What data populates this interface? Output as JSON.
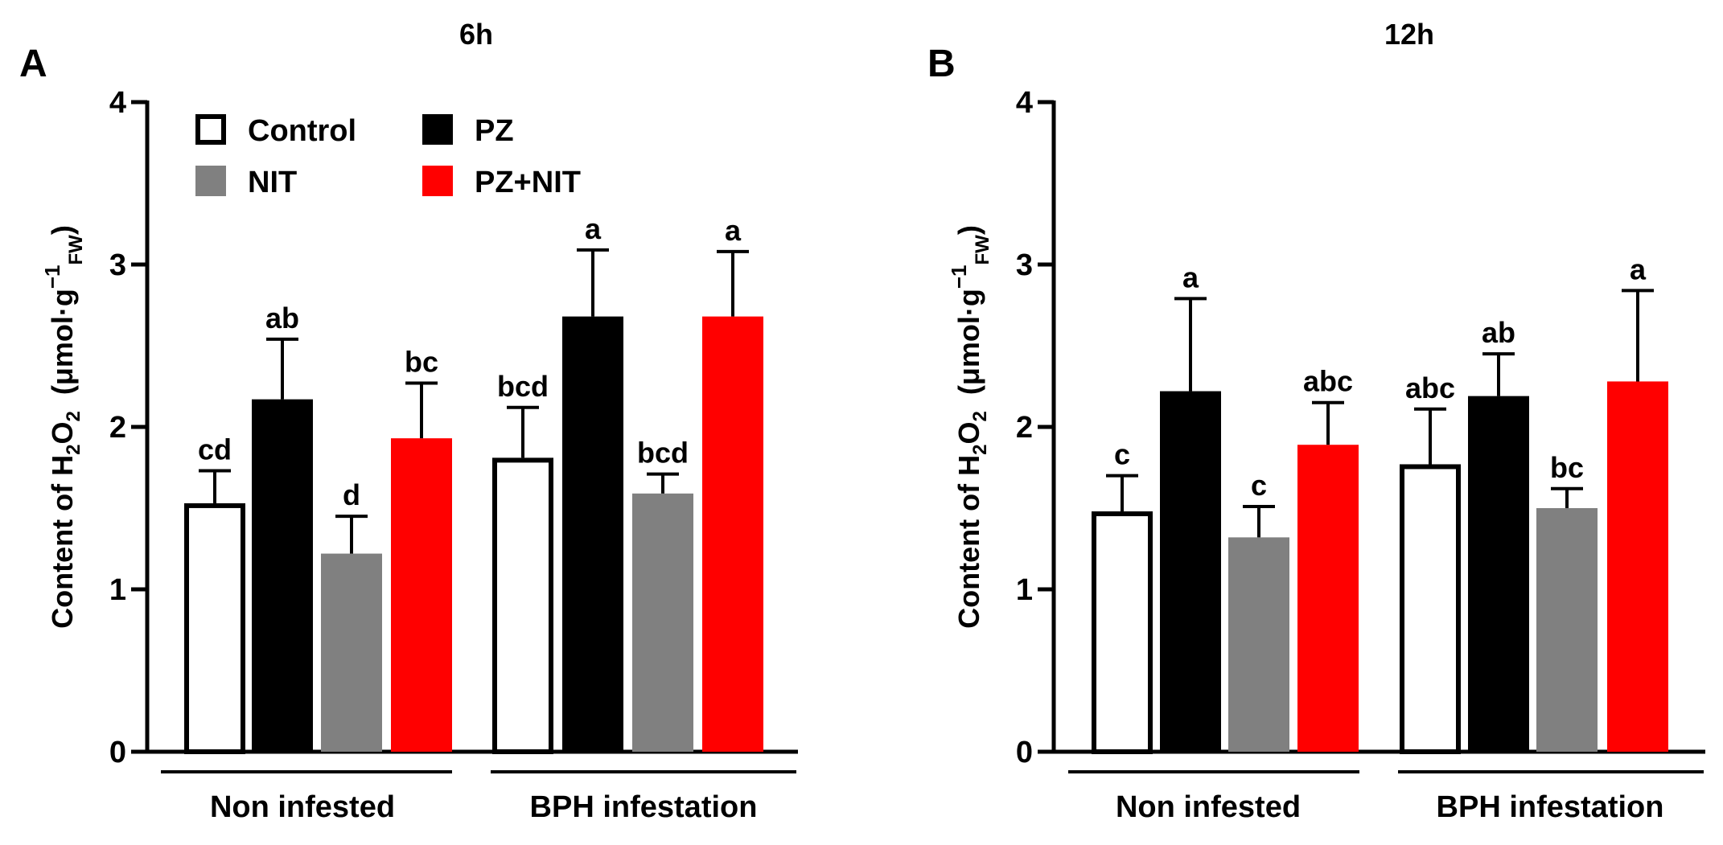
{
  "figure": {
    "legend": [
      {
        "label": "Control",
        "fill": "#ffffff",
        "stroke": "#000000"
      },
      {
        "label": "PZ",
        "fill": "#000000",
        "stroke": "#000000"
      },
      {
        "label": "NIT",
        "fill": "#808080",
        "stroke": "#808080"
      },
      {
        "label": "PZ+NIT",
        "fill": "#ff0000",
        "stroke": "#ff0000"
      }
    ],
    "ylabel_parts": {
      "pre": "Content of H",
      "sub1": "2",
      "mid": "O",
      "sub2": "2",
      "unit": "(μmol·g",
      "sup": "−1",
      "fw": "FW",
      "close": ")"
    }
  },
  "chart_data": [
    {
      "type": "bar",
      "panel_letter": "A",
      "title": "6h",
      "groups": [
        "Non infested",
        "BPH infestation"
      ],
      "series_order": [
        "Control",
        "PZ",
        "NIT",
        "PZ+NIT"
      ],
      "ylim": [
        0,
        4
      ],
      "yticks": [
        "0",
        "1",
        "2",
        "3",
        "4"
      ],
      "values": [
        [
          1.53,
          2.17,
          1.22,
          1.93
        ],
        [
          1.81,
          2.68,
          1.59,
          2.68
        ]
      ],
      "errors": [
        [
          0.2,
          0.37,
          0.23,
          0.34
        ],
        [
          0.31,
          0.41,
          0.12,
          0.4
        ]
      ],
      "letters": [
        [
          "cd",
          "ab",
          "d",
          "bc"
        ],
        [
          "bcd",
          "a",
          "bcd",
          "a"
        ]
      ]
    },
    {
      "type": "bar",
      "panel_letter": "B",
      "title": "12h",
      "groups": [
        "Non infested",
        "BPH infestation"
      ],
      "series_order": [
        "Control",
        "PZ",
        "NIT",
        "PZ+NIT"
      ],
      "ylim": [
        0,
        4
      ],
      "yticks": [
        "0",
        "1",
        "2",
        "3",
        "4"
      ],
      "values": [
        [
          1.48,
          2.22,
          1.32,
          1.89
        ],
        [
          1.77,
          2.19,
          1.5,
          2.28
        ]
      ],
      "errors": [
        [
          0.22,
          0.57,
          0.19,
          0.26
        ],
        [
          0.34,
          0.26,
          0.12,
          0.56
        ]
      ],
      "letters": [
        [
          "c",
          "a",
          "c",
          "abc"
        ],
        [
          "abc",
          "ab",
          "bc",
          "a"
        ]
      ]
    }
  ]
}
